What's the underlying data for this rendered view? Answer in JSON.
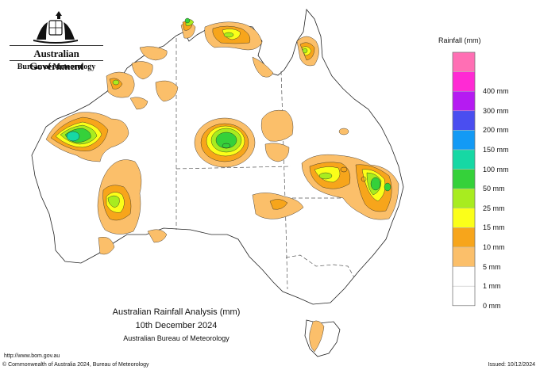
{
  "header": {
    "government": "Australian Government",
    "agency": "Bureau of Meteorology"
  },
  "legend": {
    "title": "Rainfall (mm)",
    "items": [
      {
        "label": "",
        "color": "#ff6fb4"
      },
      {
        "label": "400 mm",
        "color": "#ff2ad4"
      },
      {
        "label": "300 mm",
        "color": "#b51bf2"
      },
      {
        "label": "200 mm",
        "color": "#4a4ef0"
      },
      {
        "label": "150 mm",
        "color": "#139af5"
      },
      {
        "label": "100 mm",
        "color": "#16d8a4"
      },
      {
        "label": "50 mm",
        "color": "#35d13a"
      },
      {
        "label": "25 mm",
        "color": "#a8ec1f"
      },
      {
        "label": "15 mm",
        "color": "#fbff19"
      },
      {
        "label": "10 mm",
        "color": "#f7a51b"
      },
      {
        "label": "5 mm",
        "color": "#fbbf6a"
      },
      {
        "label": "1 mm",
        "color": "#ffffff"
      },
      {
        "label": "0 mm",
        "color": "#ffffff"
      }
    ]
  },
  "title": {
    "line1": "Australian Rainfall Analysis (mm)",
    "line2": "10th December 2024",
    "line3": "Australian Bureau of Meteorology"
  },
  "footer": {
    "url": "http://www.bom.gov.au",
    "copyright": "© Commonwealth of Australia 2024, Bureau of Meteorology",
    "issued": "Issued: 10/12/2024"
  },
  "colors": {
    "c1mm": "#fbbf6a",
    "c5mm": "#f7a51b",
    "c10mm": "#fbff19",
    "c15mm": "#a8ec1f",
    "c25mm": "#35d13a",
    "c50mm": "#16d8a4",
    "outline": "#222222"
  }
}
